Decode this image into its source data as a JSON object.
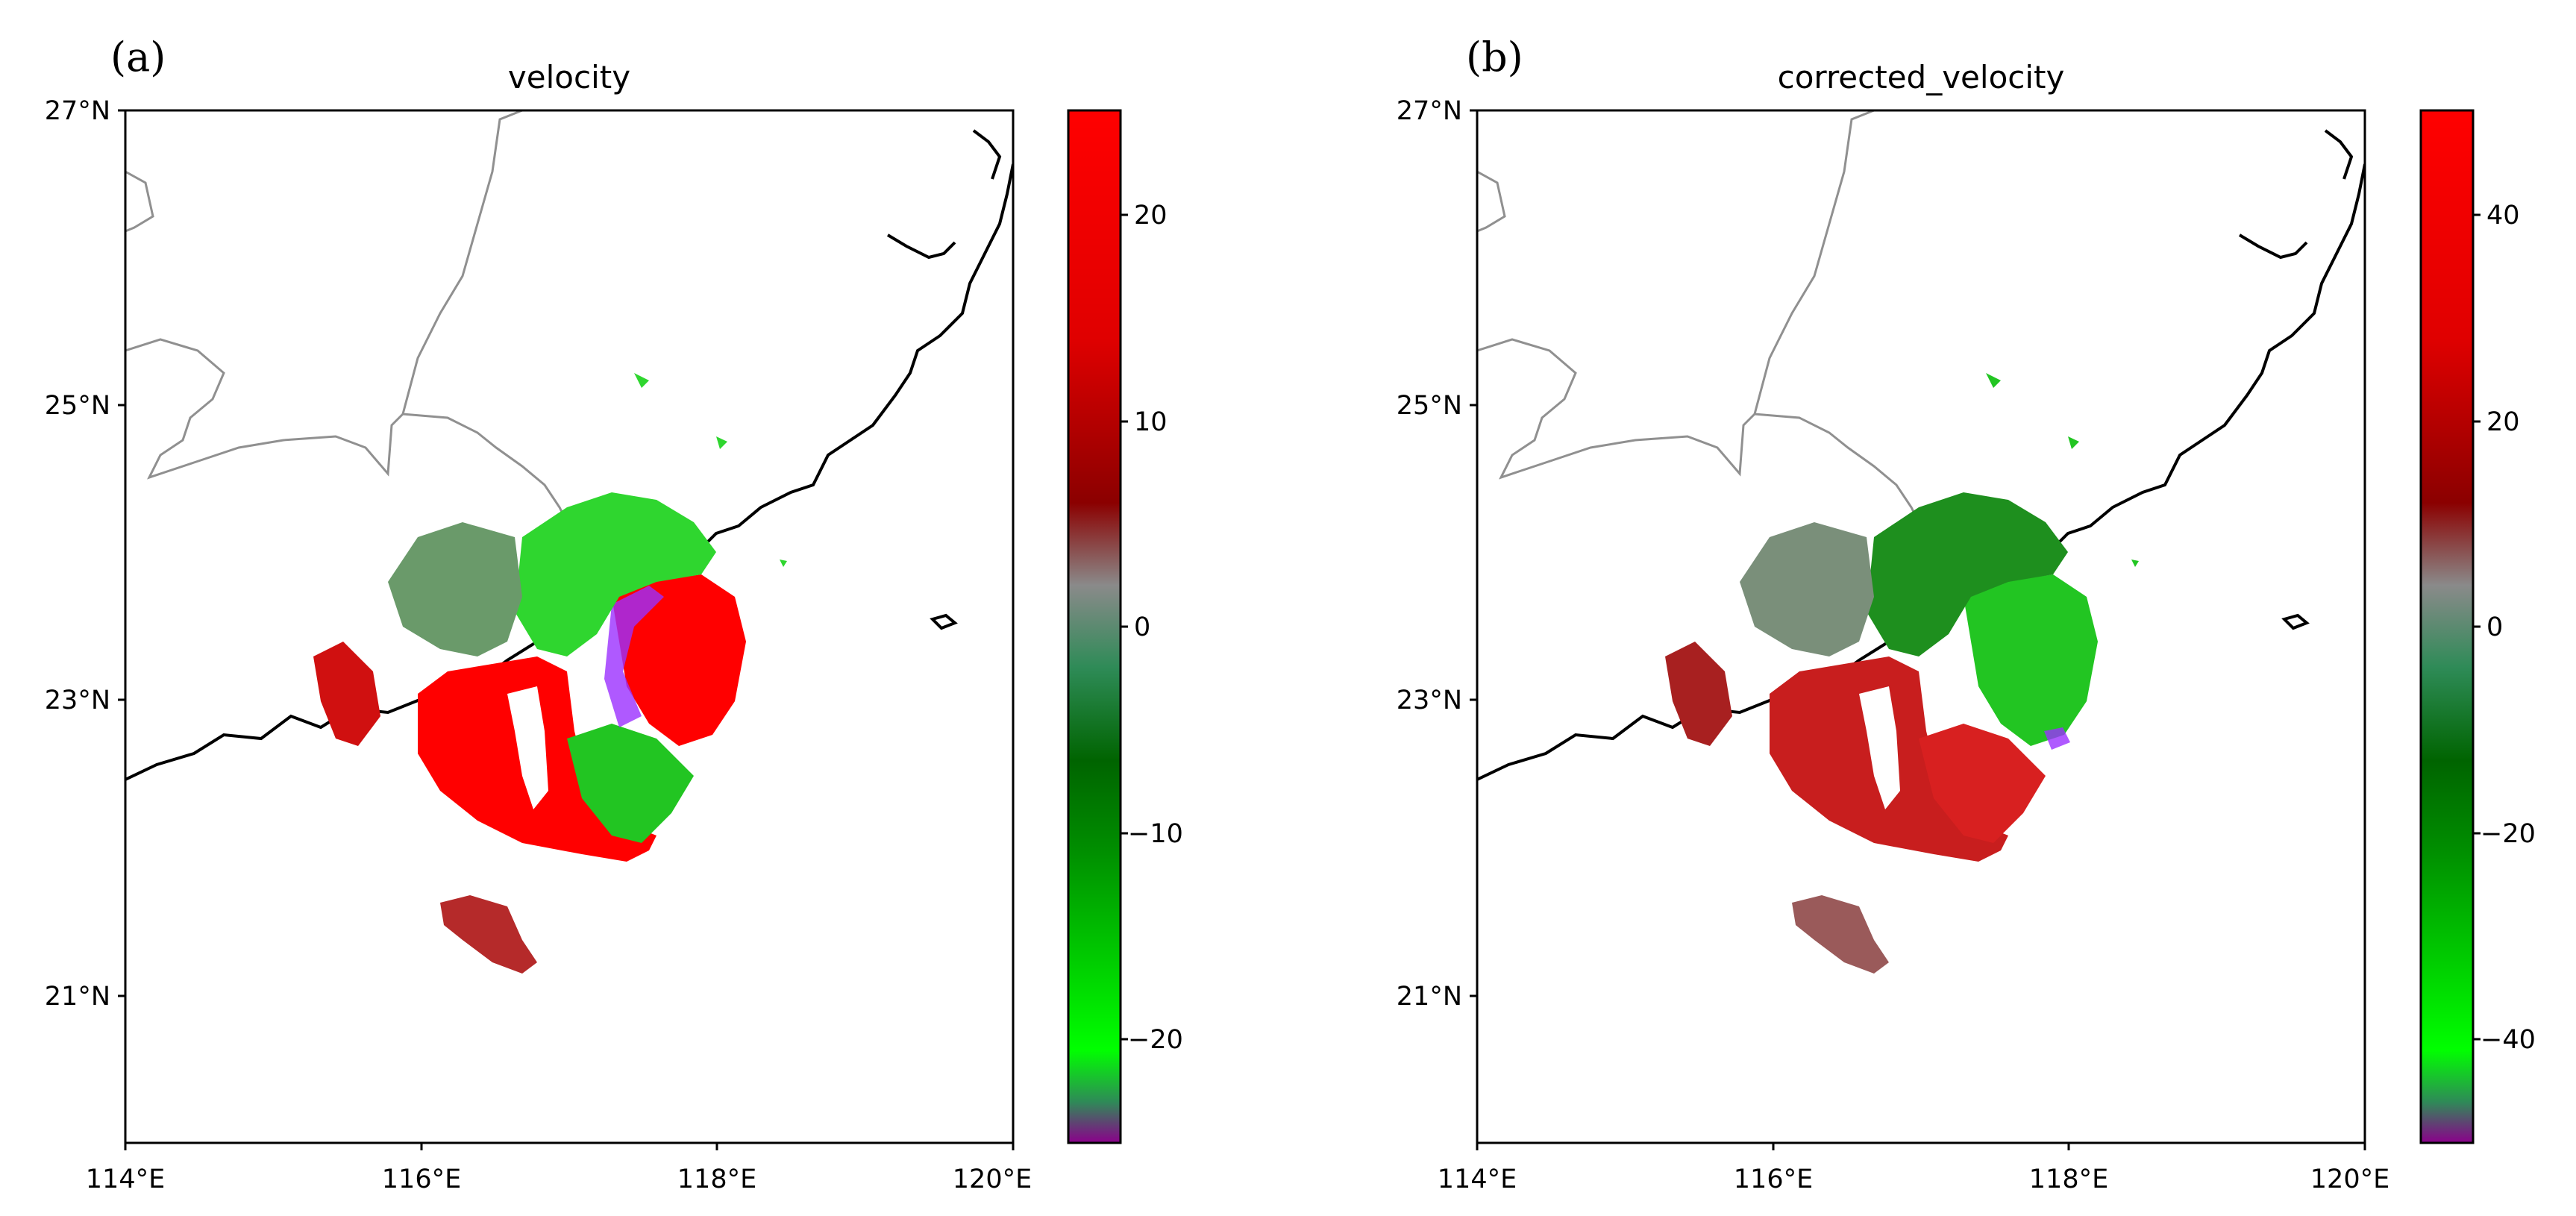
{
  "figure": {
    "panels": [
      {
        "letter": "(a)",
        "title": "velocity",
        "colorbar_labels": [
          "20",
          "10",
          "0",
          "−10",
          "−20"
        ]
      },
      {
        "letter": "(b)",
        "title": "corrected_velocity",
        "colorbar_labels": [
          "40",
          "20",
          "0",
          "−20",
          "−40"
        ]
      }
    ],
    "x_tick_labels": [
      "114°E",
      "116°E",
      "118°E",
      "120°E"
    ],
    "y_tick_labels": [
      "27°N",
      "25°N",
      "23°N",
      "21°N"
    ]
  },
  "chart_data": [
    {
      "type": "heatmap",
      "title": "velocity",
      "xlim": [
        114,
        120
      ],
      "ylim": [
        20,
        27
      ],
      "x_ticks": [
        114,
        116,
        118,
        120
      ],
      "y_ticks": [
        21,
        23,
        25,
        27
      ],
      "colorbar": {
        "range": [
          -25,
          25
        ],
        "ticks": [
          20,
          10,
          0,
          -10,
          -20
        ],
        "colors": [
          "#8b008b",
          "#2e8b57",
          "#00ff00",
          "#008000",
          "#006400",
          "#2e8b57",
          "#808080",
          "#8b0000",
          "#ff0000"
        ]
      },
      "radar_center": [
        117.0,
        23.4
      ],
      "echo_colors": {
        "outbound": "#ff0000",
        "inbound": "#00ff00",
        "aliased": "#9b30ff"
      }
    },
    {
      "type": "heatmap",
      "title": "corrected_velocity",
      "xlim": [
        114,
        120
      ],
      "ylim": [
        20,
        27
      ],
      "x_ticks": [
        114,
        116,
        118,
        120
      ],
      "y_ticks": [
        21,
        23,
        25,
        27
      ],
      "colorbar": {
        "range": [
          -50,
          50
        ],
        "ticks": [
          40,
          20,
          0,
          -20,
          -40
        ],
        "colors": [
          "#8b008b",
          "#2e8b57",
          "#00ff00",
          "#008000",
          "#006400",
          "#2e8b57",
          "#808080",
          "#8b0000",
          "#ff0000"
        ]
      },
      "radar_center": [
        117.0,
        23.4
      ],
      "echo_colors": {
        "outbound": "#c81e1e",
        "inbound": "#22c522",
        "aliased": "#9b30ff"
      }
    }
  ]
}
